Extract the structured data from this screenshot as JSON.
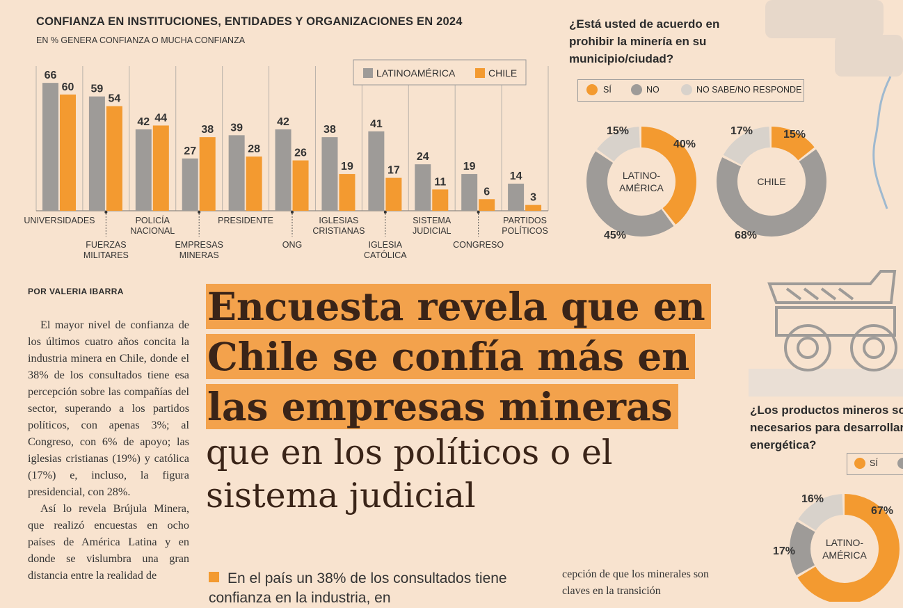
{
  "chart_data": [
    {
      "type": "bar",
      "title": "CONFIANZA EN INSTITUCIONES, ENTIDADES Y ORGANIZACIONES EN 2024",
      "subtitle": "EN % GENERA CONFIANZA O MUCHA CONFIANZA",
      "categories": [
        [
          "UNIVERSIDADES"
        ],
        [
          "FUERZAS",
          "MILITARES"
        ],
        [
          "POLICÍA",
          "NACIONAL"
        ],
        [
          "EMPRESAS",
          "MINERAS"
        ],
        [
          "PRESIDENTE"
        ],
        [
          "ONG"
        ],
        [
          "IGLESIAS",
          "CRISTIANAS"
        ],
        [
          "IGLESIA",
          "CATÓLICA"
        ],
        [
          "SISTEMA",
          "JUDICIAL"
        ],
        [
          "CONGRESO"
        ],
        [
          "PARTIDOS",
          "POLÍTICOS"
        ]
      ],
      "series": [
        {
          "name": "LATINOAMÉRICA",
          "color": "#9e9b98",
          "values": [
            66,
            59,
            42,
            27,
            39,
            42,
            38,
            41,
            24,
            19,
            14
          ]
        },
        {
          "name": "CHILE",
          "color": "#f39a30",
          "values": [
            60,
            54,
            44,
            38,
            28,
            26,
            19,
            17,
            11,
            6,
            3
          ]
        }
      ],
      "ylim": [
        0,
        100
      ],
      "grid": true,
      "legend": "top-right"
    },
    {
      "type": "pie",
      "question": "¿Está usted de acuerdo en prohibir la minería en su municipio/ciudad?",
      "legend": [
        "SÍ",
        "NO",
        "NO SABE/NO RESPONDE"
      ],
      "charts": [
        {
          "label": "LATINO-AMÉRICA",
          "values": [
            40,
            45,
            15
          ],
          "labels": [
            "40%",
            "45%",
            "15%"
          ]
        },
        {
          "label": "CHILE",
          "values": [
            15,
            68,
            17
          ],
          "labels": [
            "15%",
            "68%",
            "17%"
          ]
        }
      ]
    },
    {
      "type": "pie",
      "question": "¿Los productos mineros son necesarios para desarrollar la transición energética?",
      "question_visible": "¿Los productos mineros son necesarios para desarrollar energética?",
      "legend": [
        "SÍ"
      ],
      "charts": [
        {
          "label": "LATINO-AMÉRICA",
          "values": [
            67,
            17,
            16
          ],
          "labels": [
            "67%",
            "17%",
            "16%"
          ]
        }
      ]
    }
  ],
  "colors": {
    "si": "#f39a30",
    "no": "#9e9b98",
    "ns": "#d8d2cb",
    "bg": "#f8e3cf"
  },
  "article": {
    "byline": "POR VALERIA IBARRA",
    "headline_highlight": [
      "Encuesta revela que en",
      "Chile se confía más en",
      "las empresas mineras"
    ],
    "headline_rest": [
      "que en los políticos o el",
      "sistema judicial"
    ],
    "paragraph1": "El mayor nivel de confianza de los últimos cuatro años concita la industria minera en Chile, donde el 38% de los consultados tiene esa percepción sobre las compañías del sector, superando a los partidos políticos, con apenas 3%; al Congreso, con 6% de apoyo; las iglesias cristianas (19%) y católica (17%) e, incluso, la figura presidencial, con 28%.",
    "paragraph2": "Así lo revela Brújula Minera, que realizó encuestas en ocho países de América Latina y en donde se vislumbra una gran distancia entre la realidad de",
    "bullet": "En el país un 38% de los consultados tiene confianza en la industria, en",
    "col3": "cepción de que los minerales son claves en la transición"
  },
  "q1_lines": [
    "¿Está usted de acuerdo en",
    "prohibir la minería en su",
    "municipio/ciudad?"
  ],
  "q2_lines": [
    "¿Los productos mineros son",
    "necesarios para desarrollar",
    "energética?"
  ]
}
